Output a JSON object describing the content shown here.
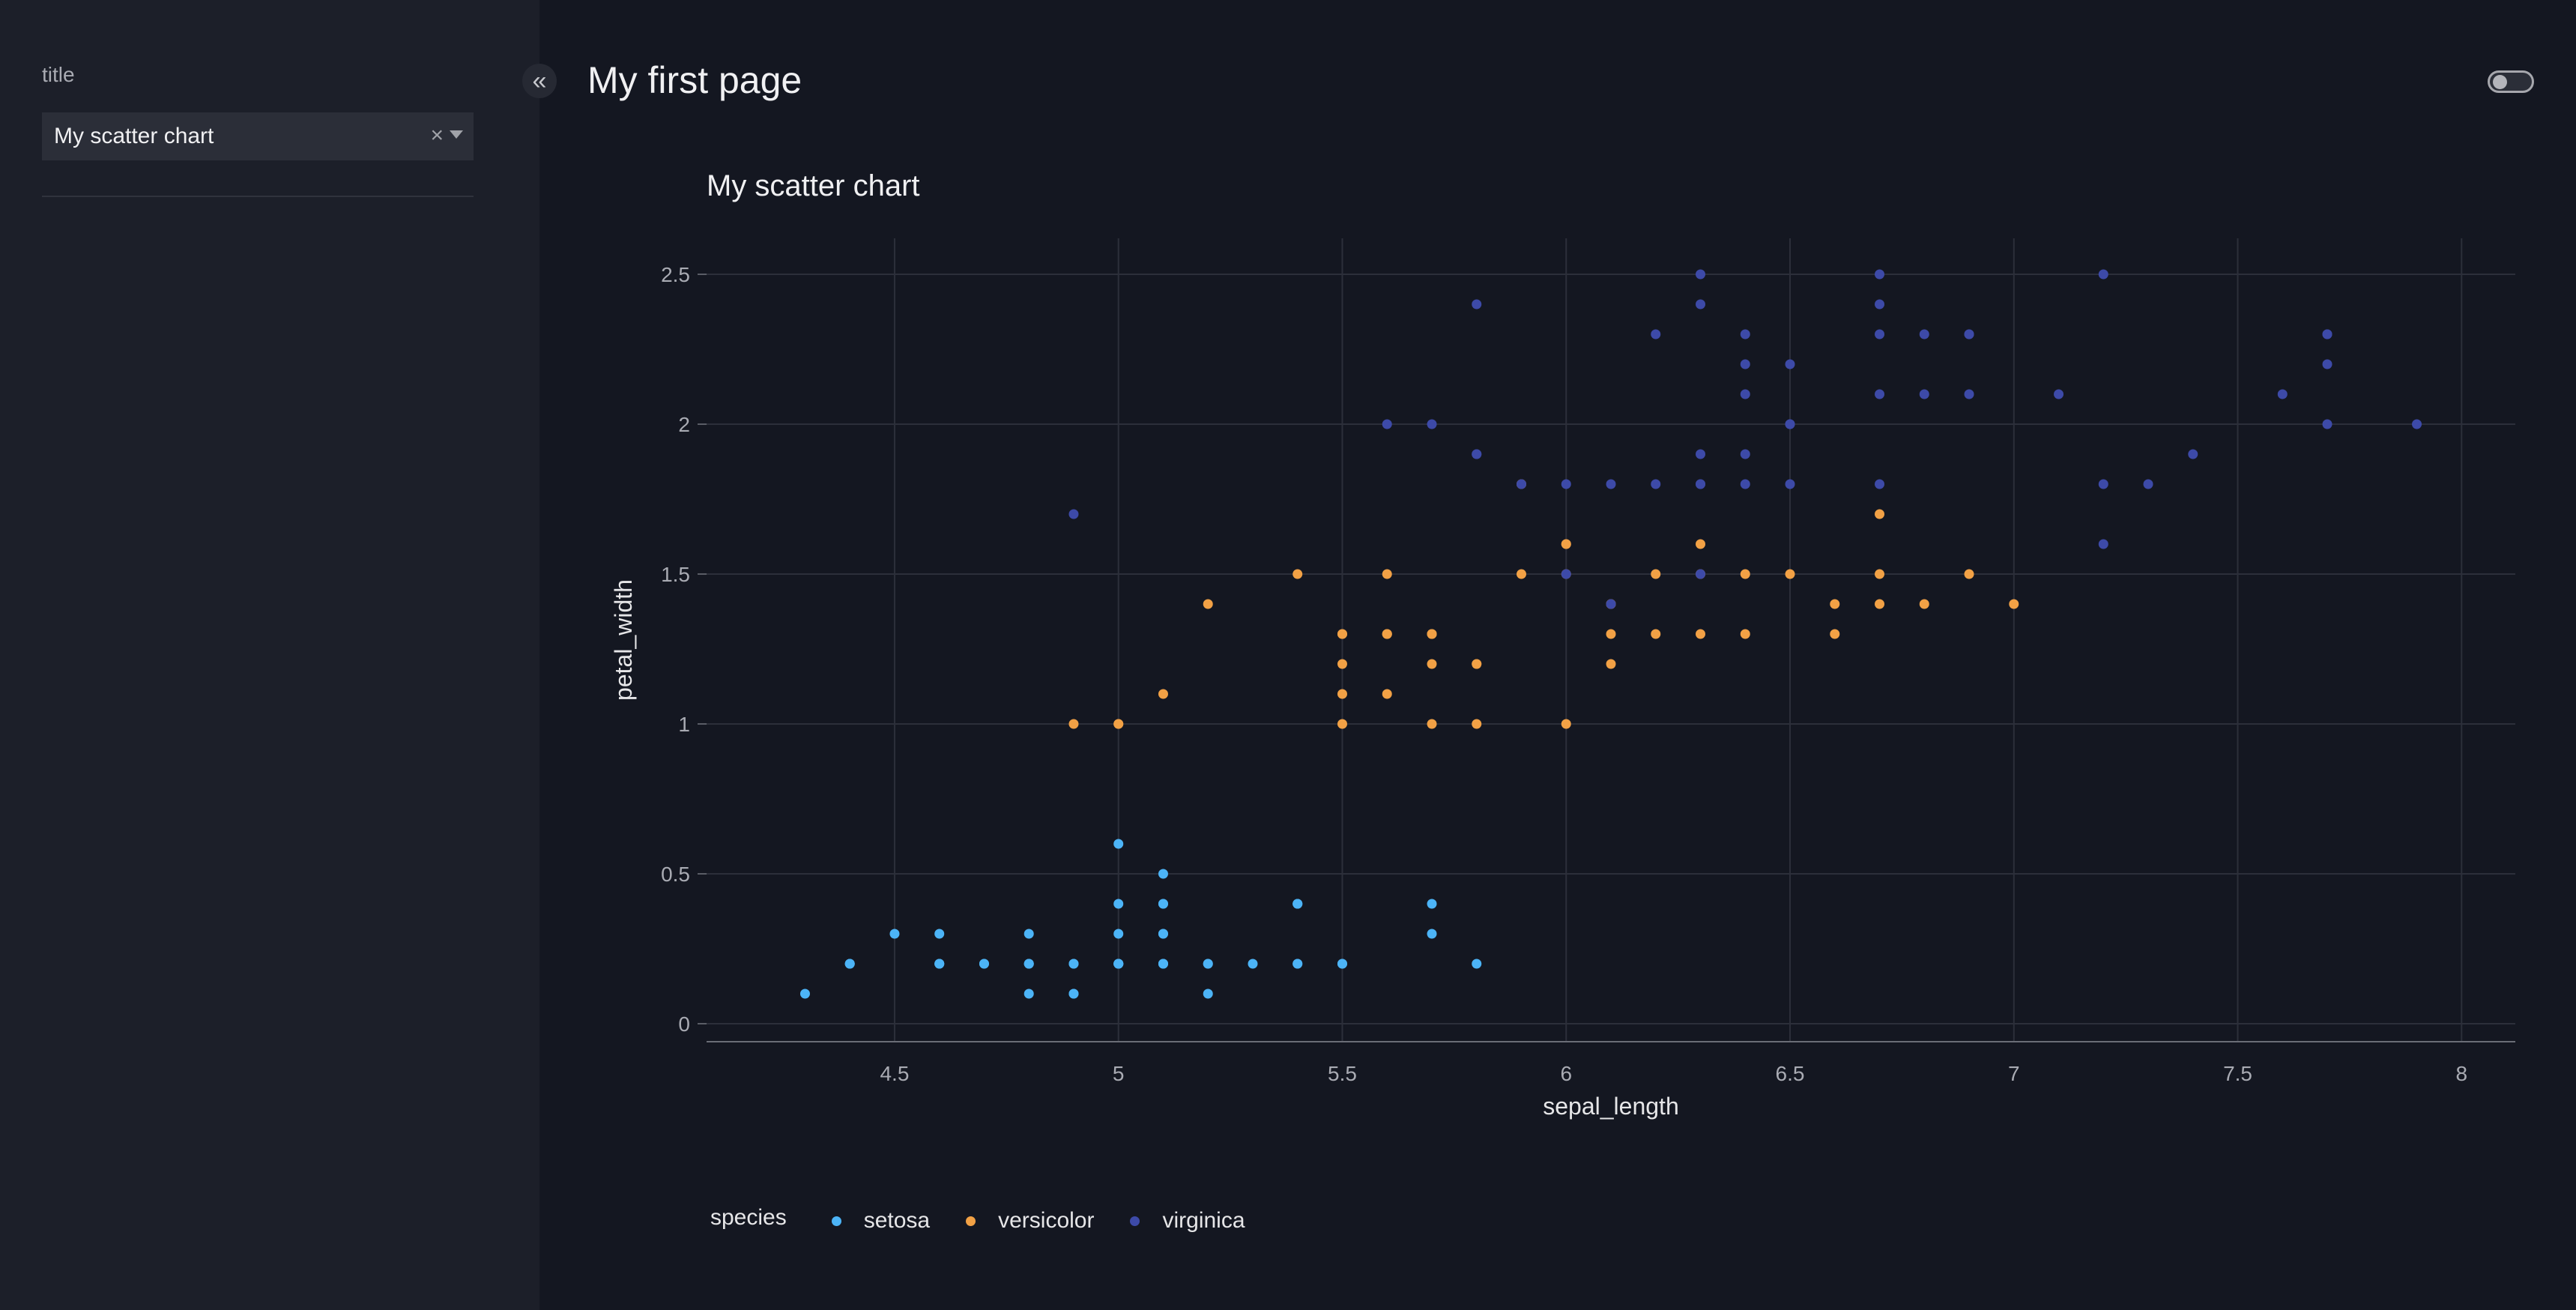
{
  "sidebar": {
    "field_label": "title",
    "select_value": "My scatter chart",
    "clear_icon": "×"
  },
  "header": {
    "collapse_icon": "«",
    "page_title": "My first page",
    "theme_toggle_on": false
  },
  "colors": {
    "setosa": "#4cb4f7",
    "versicolor": "#f2a145",
    "virginica": "#3d4aa8",
    "grid": "#2c2f3a"
  },
  "chart_data": {
    "type": "scatter",
    "title": "My scatter chart",
    "xlabel": "sepal_length",
    "ylabel": "petal_width",
    "xlim": [
      4.08,
      8.12
    ],
    "ylim": [
      -0.06,
      2.62
    ],
    "xticks": [
      4.5,
      5,
      5.5,
      6,
      6.5,
      7,
      7.5,
      8
    ],
    "xtick_labels": [
      "4.5",
      "5",
      "5.5",
      "6",
      "6.5",
      "7",
      "7.5",
      "8"
    ],
    "yticks": [
      0,
      0.5,
      1,
      1.5,
      2,
      2.5
    ],
    "ytick_labels": [
      "0",
      "0.5",
      "1",
      "1.5",
      "2",
      "2.5"
    ],
    "grid": true,
    "legend": {
      "title": "species",
      "placement": "bottom-left"
    },
    "series": [
      {
        "name": "setosa",
        "points": [
          [
            5.1,
            0.2
          ],
          [
            4.9,
            0.2
          ],
          [
            4.7,
            0.2
          ],
          [
            4.6,
            0.2
          ],
          [
            5.0,
            0.2
          ],
          [
            5.4,
            0.4
          ],
          [
            4.6,
            0.3
          ],
          [
            5.0,
            0.2
          ],
          [
            4.4,
            0.2
          ],
          [
            4.9,
            0.1
          ],
          [
            5.4,
            0.2
          ],
          [
            4.8,
            0.2
          ],
          [
            4.8,
            0.1
          ],
          [
            4.3,
            0.1
          ],
          [
            5.8,
            0.2
          ],
          [
            5.7,
            0.4
          ],
          [
            5.4,
            0.4
          ],
          [
            5.1,
            0.3
          ],
          [
            5.7,
            0.3
          ],
          [
            5.1,
            0.3
          ],
          [
            5.4,
            0.2
          ],
          [
            5.1,
            0.4
          ],
          [
            4.6,
            0.2
          ],
          [
            5.1,
            0.5
          ],
          [
            4.8,
            0.2
          ],
          [
            5.0,
            0.2
          ],
          [
            5.0,
            0.4
          ],
          [
            5.2,
            0.2
          ],
          [
            5.2,
            0.2
          ],
          [
            4.7,
            0.2
          ],
          [
            4.8,
            0.2
          ],
          [
            5.4,
            0.4
          ],
          [
            5.2,
            0.1
          ],
          [
            5.5,
            0.2
          ],
          [
            4.9,
            0.2
          ],
          [
            5.0,
            0.2
          ],
          [
            5.5,
            0.2
          ],
          [
            4.9,
            0.1
          ],
          [
            4.4,
            0.2
          ],
          [
            5.1,
            0.2
          ],
          [
            5.0,
            0.3
          ],
          [
            4.5,
            0.3
          ],
          [
            4.4,
            0.2
          ],
          [
            5.0,
            0.6
          ],
          [
            5.1,
            0.4
          ],
          [
            4.8,
            0.3
          ],
          [
            5.1,
            0.2
          ],
          [
            4.6,
            0.2
          ],
          [
            5.3,
            0.2
          ],
          [
            5.0,
            0.2
          ]
        ]
      },
      {
        "name": "versicolor",
        "points": [
          [
            7.0,
            1.4
          ],
          [
            6.4,
            1.5
          ],
          [
            6.9,
            1.5
          ],
          [
            5.5,
            1.3
          ],
          [
            6.5,
            1.5
          ],
          [
            5.7,
            1.3
          ],
          [
            6.3,
            1.6
          ],
          [
            4.9,
            1.0
          ],
          [
            6.6,
            1.3
          ],
          [
            5.2,
            1.4
          ],
          [
            5.0,
            1.0
          ],
          [
            5.9,
            1.5
          ],
          [
            6.0,
            1.0
          ],
          [
            6.1,
            1.4
          ],
          [
            5.6,
            1.3
          ],
          [
            6.7,
            1.4
          ],
          [
            5.6,
            1.5
          ],
          [
            5.8,
            1.0
          ],
          [
            6.2,
            1.5
          ],
          [
            5.6,
            1.1
          ],
          [
            5.9,
            1.8
          ],
          [
            6.1,
            1.3
          ],
          [
            6.3,
            1.5
          ],
          [
            6.1,
            1.2
          ],
          [
            6.4,
            1.3
          ],
          [
            6.6,
            1.4
          ],
          [
            6.8,
            1.4
          ],
          [
            6.7,
            1.7
          ],
          [
            6.0,
            1.5
          ],
          [
            5.7,
            1.0
          ],
          [
            5.5,
            1.1
          ],
          [
            5.5,
            1.0
          ],
          [
            5.8,
            1.2
          ],
          [
            6.0,
            1.6
          ],
          [
            5.4,
            1.5
          ],
          [
            6.0,
            1.6
          ],
          [
            6.7,
            1.5
          ],
          [
            6.3,
            1.3
          ],
          [
            5.6,
            1.3
          ],
          [
            5.5,
            1.3
          ],
          [
            5.5,
            1.2
          ],
          [
            6.1,
            1.4
          ],
          [
            5.8,
            1.2
          ],
          [
            5.0,
            1.0
          ],
          [
            5.6,
            1.3
          ],
          [
            5.7,
            1.2
          ],
          [
            5.7,
            1.3
          ],
          [
            6.2,
            1.3
          ],
          [
            5.1,
            1.1
          ],
          [
            5.7,
            1.3
          ]
        ]
      },
      {
        "name": "virginica",
        "points": [
          [
            6.3,
            2.5
          ],
          [
            5.8,
            1.9
          ],
          [
            7.1,
            2.1
          ],
          [
            6.3,
            1.8
          ],
          [
            6.5,
            2.2
          ],
          [
            7.6,
            2.1
          ],
          [
            4.9,
            1.7
          ],
          [
            7.3,
            1.8
          ],
          [
            6.7,
            1.8
          ],
          [
            7.2,
            2.5
          ],
          [
            6.5,
            2.0
          ],
          [
            6.4,
            1.9
          ],
          [
            6.8,
            2.1
          ],
          [
            5.7,
            2.0
          ],
          [
            5.8,
            2.4
          ],
          [
            6.4,
            2.3
          ],
          [
            6.5,
            1.8
          ],
          [
            7.7,
            2.2
          ],
          [
            7.7,
            2.3
          ],
          [
            6.0,
            1.5
          ],
          [
            6.9,
            2.3
          ],
          [
            5.6,
            2.0
          ],
          [
            7.7,
            2.0
          ],
          [
            6.3,
            1.8
          ],
          [
            6.7,
            2.1
          ],
          [
            7.2,
            1.8
          ],
          [
            6.2,
            1.8
          ],
          [
            6.1,
            1.8
          ],
          [
            6.4,
            2.1
          ],
          [
            7.2,
            1.6
          ],
          [
            7.4,
            1.9
          ],
          [
            7.9,
            2.0
          ],
          [
            6.4,
            2.2
          ],
          [
            6.3,
            1.5
          ],
          [
            6.1,
            1.4
          ],
          [
            7.7,
            2.3
          ],
          [
            6.3,
            2.4
          ],
          [
            6.4,
            1.8
          ],
          [
            6.0,
            1.8
          ],
          [
            6.9,
            2.1
          ],
          [
            6.7,
            2.4
          ],
          [
            6.9,
            2.3
          ],
          [
            5.8,
            1.9
          ],
          [
            6.8,
            2.3
          ],
          [
            6.7,
            2.5
          ],
          [
            6.7,
            2.3
          ],
          [
            6.3,
            1.9
          ],
          [
            6.5,
            2.0
          ],
          [
            6.2,
            2.3
          ],
          [
            5.9,
            1.8
          ]
        ]
      }
    ]
  }
}
